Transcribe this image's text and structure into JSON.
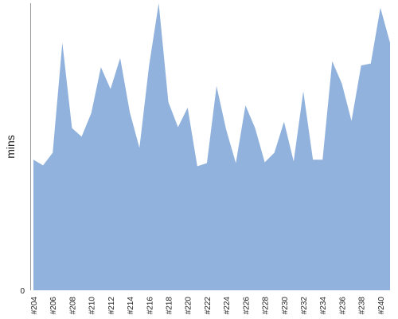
{
  "chart_data": {
    "type": "area",
    "ylabel": "mins",
    "xlabel": "",
    "title": "",
    "grid": false,
    "legend": "none",
    "area_color": "#90b2dc",
    "axis_color": "#999999",
    "ylim": [
      0,
      100
    ],
    "y_ticks": [
      0
    ],
    "x_tick_labels": [
      "#204",
      "#206",
      "#208",
      "#210",
      "#212",
      "#214",
      "#216",
      "#218",
      "#220",
      "#222",
      "#224",
      "#226",
      "#228",
      "#230",
      "#232",
      "#234",
      "#236",
      "#238",
      "#240"
    ],
    "categories": [
      "#204",
      "#205",
      "#206",
      "#207",
      "#208",
      "#209",
      "#210",
      "#211",
      "#212",
      "#213",
      "#214",
      "#215",
      "#216",
      "#217",
      "#218",
      "#219",
      "#220",
      "#221",
      "#222",
      "#223",
      "#224",
      "#225",
      "#226",
      "#227",
      "#228",
      "#229",
      "#230",
      "#231",
      "#232",
      "#233",
      "#234",
      "#235",
      "#236",
      "#237",
      "#238",
      "#239",
      "#240",
      "#241"
    ],
    "values": [
      45.5,
      43.5,
      47.9,
      86.2,
      56.5,
      53.5,
      61.7,
      77.7,
      70.1,
      80.9,
      62.0,
      49.6,
      78.3,
      100,
      65.6,
      56.8,
      63.6,
      43.2,
      44.3,
      71.1,
      55.9,
      44.3,
      64.4,
      56.5,
      44.6,
      47.9,
      58.7,
      44.9,
      69.3,
      45.5,
      45.5,
      79.8,
      72.0,
      59.0,
      78.3,
      79.0,
      98.4,
      86.2
    ]
  }
}
